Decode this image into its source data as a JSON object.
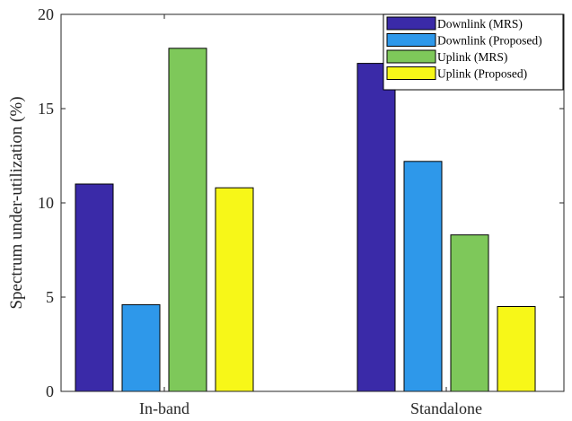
{
  "chart_data": {
    "type": "bar",
    "categories": [
      "In-band",
      "Standalone"
    ],
    "series": [
      {
        "name": "Downlink (MRS)",
        "color": "#3a2aa8",
        "values": [
          11.0,
          17.4
        ]
      },
      {
        "name": "Downlink (Proposed)",
        "color": "#2e98ea",
        "values": [
          4.6,
          12.2
        ]
      },
      {
        "name": "Uplink (MRS)",
        "color": "#7ec85a",
        "values": [
          18.2,
          8.3
        ]
      },
      {
        "name": "Uplink (Proposed)",
        "color": "#f7f718",
        "values": [
          10.8,
          4.5
        ]
      }
    ],
    "title": "",
    "xlabel": "",
    "ylabel": "Spectrum under-utilization (%)",
    "ylim": [
      0,
      20
    ],
    "yticks": [
      0,
      5,
      10,
      15,
      20
    ],
    "grid": false,
    "legend": "top-right"
  }
}
